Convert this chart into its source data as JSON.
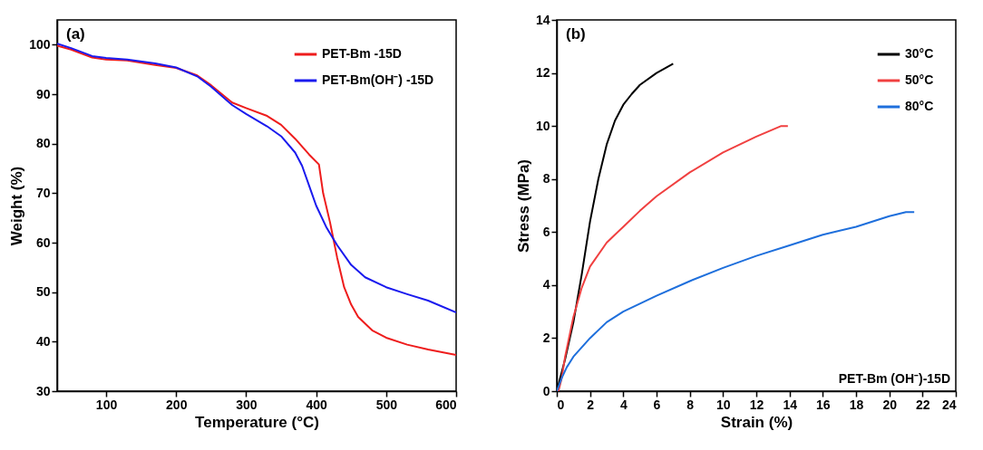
{
  "chart_data": [
    {
      "type": "line",
      "xlabel": "Temperature (°C)",
      "ylabel": "Weight (%)",
      "xlim": [
        30,
        600
      ],
      "ylim": [
        30,
        105
      ],
      "xticks": [
        100,
        200,
        300,
        400,
        500,
        600
      ],
      "yticks": [
        30,
        40,
        50,
        60,
        70,
        80,
        90,
        100
      ],
      "legend": "top right",
      "annotations": [
        "(a)"
      ],
      "series": [
        {
          "name": "PET-Bm -15D",
          "color": "#ee1c1c",
          "x": [
            30,
            50,
            80,
            100,
            130,
            170,
            200,
            230,
            250,
            280,
            300,
            330,
            350,
            370,
            390,
            404,
            410,
            420,
            430,
            440,
            450,
            460,
            480,
            500,
            530,
            560,
            600
          ],
          "values": [
            99.8,
            99,
            97.4,
            97,
            96.8,
            95.9,
            95.3,
            93.8,
            91.8,
            88.3,
            87.2,
            85.6,
            83.8,
            81,
            77.8,
            75.8,
            70,
            64,
            57,
            51,
            47.5,
            45,
            42.3,
            40.8,
            39.4,
            38.4,
            37.3
          ]
        },
        {
          "name": "PET-Bm(OH⁻) -15D",
          "color": "#1a1aee",
          "x": [
            30,
            50,
            80,
            100,
            130,
            170,
            200,
            230,
            250,
            280,
            300,
            330,
            350,
            370,
            380,
            390,
            400,
            415,
            430,
            450,
            470,
            500,
            530,
            560,
            600
          ],
          "values": [
            100.2,
            99.3,
            97.7,
            97.3,
            97,
            96.2,
            95.4,
            93.6,
            91.5,
            87.8,
            86,
            83.5,
            81.5,
            78.2,
            75.5,
            71.5,
            67.5,
            63,
            59.5,
            55.5,
            53,
            51,
            49.6,
            48.3,
            45.9
          ]
        }
      ]
    },
    {
      "type": "line",
      "xlabel": "Strain (%)",
      "ylabel": "Stress (MPa)",
      "xlim": [
        0,
        24
      ],
      "ylim": [
        0,
        14
      ],
      "xticks": [
        0,
        2,
        4,
        6,
        8,
        10,
        12,
        14,
        16,
        18,
        20,
        22,
        24
      ],
      "yticks": [
        0,
        2,
        4,
        6,
        8,
        10,
        12,
        14
      ],
      "legend": "top right",
      "annotations": [
        "(b)",
        "PET-Bm (OH⁻)-15D"
      ],
      "series": [
        {
          "name": "30°C",
          "color": "#000000",
          "x": [
            0,
            0.5,
            1,
            1.5,
            2,
            2.5,
            3,
            3.5,
            4,
            4.5,
            5,
            6,
            7
          ],
          "values": [
            0,
            1.2,
            2.6,
            4.4,
            6.4,
            8,
            9.3,
            10.2,
            10.8,
            11.2,
            11.55,
            12,
            12.35
          ]
        },
        {
          "name": "50°C",
          "color": "#f04040",
          "x": [
            0.1,
            0.3,
            0.5,
            1,
            1.5,
            2,
            3,
            4,
            5,
            6,
            8,
            10,
            12,
            13.5,
            13.9
          ],
          "values": [
            0,
            0.5,
            1.3,
            2.8,
            3.9,
            4.7,
            5.6,
            6.2,
            6.8,
            7.35,
            8.25,
            9,
            9.6,
            10,
            10
          ]
        },
        {
          "name": "80°C",
          "color": "#1e6fdc",
          "x": [
            0,
            0.3,
            0.6,
            1,
            2,
            3,
            4,
            6,
            8,
            10,
            12,
            14,
            16,
            18,
            20,
            21,
            21.5
          ],
          "values": [
            0,
            0.5,
            0.9,
            1.3,
            2,
            2.6,
            3,
            3.6,
            4.15,
            4.65,
            5.1,
            5.5,
            5.9,
            6.2,
            6.6,
            6.75,
            6.75
          ]
        }
      ]
    }
  ]
}
